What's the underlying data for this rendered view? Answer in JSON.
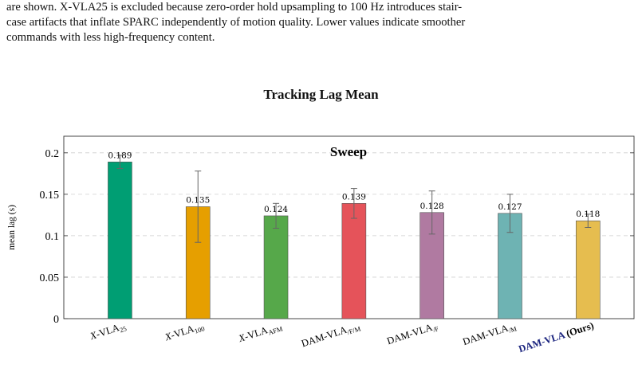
{
  "caption": {
    "line1": "are shown. X-VLA25 is excluded because zero-order hold upsampling to 100 Hz introduces stair-",
    "line2": "case artifacts that inflate SPARC independently of motion quality. Lower values indicate smoother",
    "line3": "commands with less high-frequency content."
  },
  "chart_data": {
    "type": "bar",
    "title": "Tracking Lag Mean",
    "annotation": "Sweep",
    "ylabel": "mean lag (s)",
    "xlabel": "",
    "ylim": [
      0,
      0.22
    ],
    "yticks": [
      0,
      0.05,
      0.1,
      0.15,
      0.2
    ],
    "ytick_labels": [
      "0",
      "0.05",
      "0.1",
      "0.15",
      "0.2"
    ],
    "grid": true,
    "categories": [
      "X-VLA25",
      "X-VLA100",
      "X-VLAAFM",
      "DAM-VLA/F/M",
      "DAM-VLA/F",
      "DAM-VLA/M",
      "DAM-VLA (Ours)"
    ],
    "category_parts": [
      {
        "main": "X",
        "rest": "-VLA",
        "sub": "25",
        "suffix": ""
      },
      {
        "main": "X",
        "rest": "-VLA",
        "sub": "100",
        "suffix": ""
      },
      {
        "main": "X",
        "rest": "-VLA",
        "sub": "AFM",
        "suffix": ""
      },
      {
        "main": "",
        "rest": "DAM-VLA",
        "sub": "/F/M",
        "suffix": ""
      },
      {
        "main": "",
        "rest": "DAM-VLA",
        "sub": "/F",
        "suffix": ""
      },
      {
        "main": "",
        "rest": "DAM-VLA",
        "sub": "/M",
        "suffix": ""
      },
      {
        "main": "",
        "rest": "DAM-VLA",
        "sub": "",
        "suffix": " (Ours)"
      }
    ],
    "values": [
      0.189,
      0.135,
      0.124,
      0.139,
      0.128,
      0.127,
      0.118
    ],
    "value_labels": [
      "0.189",
      "0.135",
      "0.124",
      "0.139",
      "0.128",
      "0.127",
      "0.118"
    ],
    "errors": [
      0.008,
      0.043,
      0.015,
      0.018,
      0.026,
      0.023,
      0.008
    ],
    "colors": [
      "#009e73",
      "#e69f00",
      "#56a84a",
      "#e5535a",
      "#b07aa1",
      "#6eb3b3",
      "#e6bd4f"
    ],
    "ours_color": "#1a237e"
  }
}
